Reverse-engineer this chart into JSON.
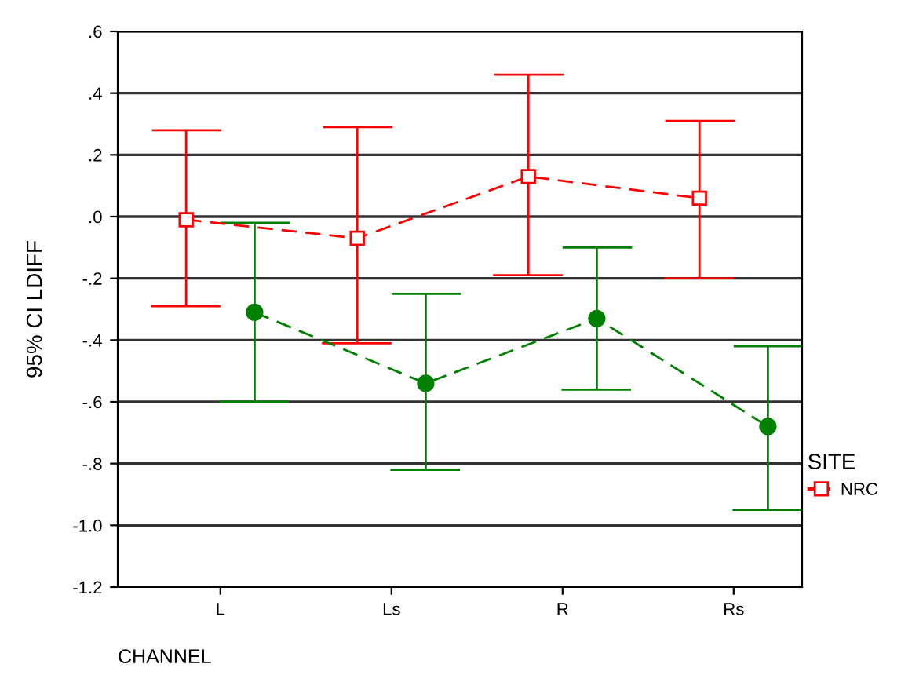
{
  "chart_data": {
    "type": "line",
    "xlabel": "CHANNEL",
    "ylabel": "95% CI LDIFF",
    "legend_title": "SITE",
    "categories": [
      "L",
      "Ls",
      "R",
      "Rs"
    ],
    "series": [
      {
        "name": "NRC",
        "color": "#ff0000",
        "marker": "square",
        "values": [
          -0.01,
          -0.07,
          0.13,
          0.06
        ],
        "errors": [
          [
            -0.29,
            0.28
          ],
          [
            -0.41,
            0.29
          ],
          [
            -0.19,
            0.46
          ],
          [
            -0.2,
            0.31
          ]
        ]
      },
      {
        "color": "#008000",
        "marker": "circle",
        "values": [
          -0.31,
          -0.54,
          -0.33,
          -0.68
        ],
        "errors": [
          [
            -0.6,
            -0.02
          ],
          [
            -0.82,
            -0.25
          ],
          [
            -0.56,
            -0.1
          ],
          [
            -0.95,
            -0.42
          ]
        ]
      }
    ],
    "ylim": [
      -1.2,
      0.6
    ],
    "yticks": [
      {
        "value": -1.2,
        "label": "-1.2"
      },
      {
        "value": -1.0,
        "label": "-1.0"
      },
      {
        "value": -0.8,
        "label": "-.8"
      },
      {
        "value": -0.6,
        "label": "-.6"
      },
      {
        "value": -0.4,
        "label": "-.4"
      },
      {
        "value": -0.2,
        "label": "-.2"
      },
      {
        "value": 0.0,
        "label": ".0"
      },
      {
        "value": 0.2,
        "label": ".2"
      },
      {
        "value": 0.4,
        "label": ".4"
      },
      {
        "value": 0.6,
        "label": ".6"
      }
    ],
    "grid": "y",
    "legend": "right",
    "line_style": "dashed"
  }
}
